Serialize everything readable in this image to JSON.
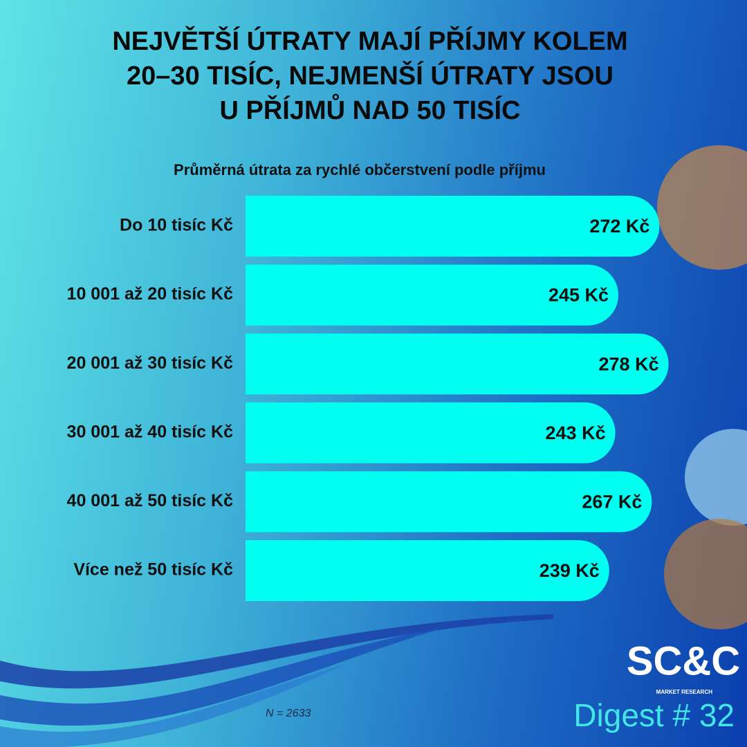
{
  "chart_data": {
    "type": "hbar",
    "title": [
      "NEJVĚTŠÍ ÚTRATY MAJÍ PŘÍJMY KOLEM",
      "20–30 TISÍC, NEJMENŠÍ ÚTRATY JSOU",
      "U PŘÍJMŮ NAD 50 TISÍC"
    ],
    "subtitle": "Průměrná útrata za rychlé občerstvení podle příjmu",
    "categories": [
      "Do 10 tisíc Kč",
      "10 001 až 20 tisíc Kč",
      "20 001 až 30 tisíc Kč",
      "30 001 až 40 tisíc Kč",
      "40 001 až 50 tisíc Kč",
      "Více než 50 tisíc Kč"
    ],
    "values": [
      272,
      245,
      278,
      243,
      267,
      239
    ],
    "value_labels": [
      "272 Kč",
      "245 Kč",
      "278 Kč",
      "243 Kč",
      "267 Kč",
      "239 Kč"
    ],
    "color": "#00fff0",
    "xlim": [
      0,
      300
    ],
    "note": "N  = 2633"
  },
  "branding": {
    "logo": "SC&C",
    "logo_sub": "MARKET RESEARCH",
    "issue": "Digest # 32"
  }
}
